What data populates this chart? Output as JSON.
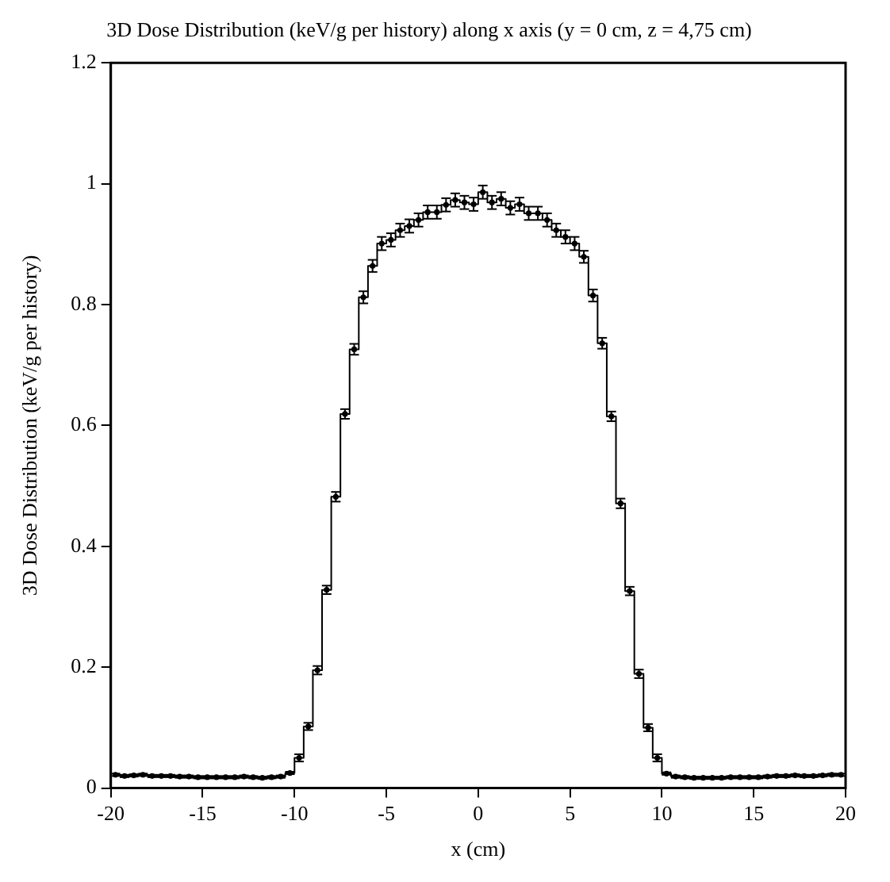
{
  "chart_data": {
    "type": "step",
    "title": "3D Dose Distribution (keV/g per history) along x axis (y = 0 cm, z = 4,75 cm)",
    "xlabel": "x (cm)",
    "ylabel": "3D Dose Distribution (keV/g per history)",
    "x": [
      -19.75,
      -19.25,
      -18.75,
      -18.25,
      -17.75,
      -17.25,
      -16.75,
      -16.25,
      -15.75,
      -15.25,
      -14.75,
      -14.25,
      -13.75,
      -13.25,
      -12.75,
      -12.25,
      -11.75,
      -11.25,
      -10.75,
      -10.25,
      -9.75,
      -9.25,
      -8.75,
      -8.25,
      -7.75,
      -7.25,
      -6.75,
      -6.25,
      -5.75,
      -5.25,
      -4.75,
      -4.25,
      -3.75,
      -3.25,
      -2.75,
      -2.25,
      -1.75,
      -1.25,
      -0.75,
      -0.25,
      0.25,
      0.75,
      1.25,
      1.75,
      2.25,
      2.75,
      3.25,
      3.75,
      4.25,
      4.75,
      5.25,
      5.75,
      6.25,
      6.75,
      7.25,
      7.75,
      8.25,
      8.75,
      9.25,
      9.75,
      10.25,
      10.75,
      11.25,
      11.75,
      12.25,
      12.75,
      13.25,
      13.75,
      14.25,
      14.75,
      15.25,
      15.75,
      16.25,
      16.75,
      17.25,
      17.75,
      18.25,
      18.75,
      19.25,
      19.75
    ],
    "series": [
      {
        "color": "#000000",
        "values": [
          0.022,
          0.02,
          0.021,
          0.022,
          0.02,
          0.02,
          0.02,
          0.019,
          0.019,
          0.018,
          0.018,
          0.018,
          0.018,
          0.018,
          0.019,
          0.018,
          0.017,
          0.018,
          0.019,
          0.025,
          0.05,
          0.102,
          0.195,
          0.328,
          0.482,
          0.619,
          0.726,
          0.812,
          0.864,
          0.901,
          0.907,
          0.923,
          0.93,
          0.94,
          0.953,
          0.953,
          0.965,
          0.973,
          0.969,
          0.966,
          0.986,
          0.969,
          0.975,
          0.96,
          0.966,
          0.951,
          0.951,
          0.94,
          0.923,
          0.912,
          0.901,
          0.879,
          0.815,
          0.736,
          0.615,
          0.471,
          0.326,
          0.189,
          0.1,
          0.05,
          0.024,
          0.019,
          0.018,
          0.017,
          0.017,
          0.017,
          0.017,
          0.018,
          0.018,
          0.018,
          0.018,
          0.019,
          0.02,
          0.02,
          0.021,
          0.02,
          0.02,
          0.021,
          0.022,
          0.022
        ],
        "errors": [
          0.002,
          0.002,
          0.002,
          0.002,
          0.002,
          0.002,
          0.002,
          0.002,
          0.002,
          0.002,
          0.002,
          0.002,
          0.002,
          0.002,
          0.002,
          0.002,
          0.002,
          0.002,
          0.002,
          0.002,
          0.006,
          0.006,
          0.007,
          0.007,
          0.008,
          0.008,
          0.009,
          0.01,
          0.01,
          0.011,
          0.011,
          0.011,
          0.011,
          0.011,
          0.011,
          0.011,
          0.011,
          0.011,
          0.011,
          0.011,
          0.011,
          0.011,
          0.011,
          0.011,
          0.011,
          0.011,
          0.011,
          0.011,
          0.011,
          0.011,
          0.011,
          0.01,
          0.01,
          0.009,
          0.008,
          0.008,
          0.007,
          0.007,
          0.006,
          0.006,
          0.002,
          0.002,
          0.002,
          0.002,
          0.002,
          0.002,
          0.002,
          0.002,
          0.002,
          0.002,
          0.002,
          0.002,
          0.002,
          0.002,
          0.002,
          0.002,
          0.002,
          0.002,
          0.002,
          0.002
        ]
      }
    ],
    "xlim": [
      -20,
      20
    ],
    "xticks": [
      -20,
      -15,
      -10,
      -5,
      0,
      5,
      10,
      15,
      20
    ],
    "ylim": [
      0,
      1.2
    ],
    "yticks": [
      0,
      0.2,
      0.4,
      0.6,
      0.8,
      1,
      1.2
    ],
    "grid": false,
    "legend": false,
    "marker": "circle",
    "line_style": "solid"
  }
}
